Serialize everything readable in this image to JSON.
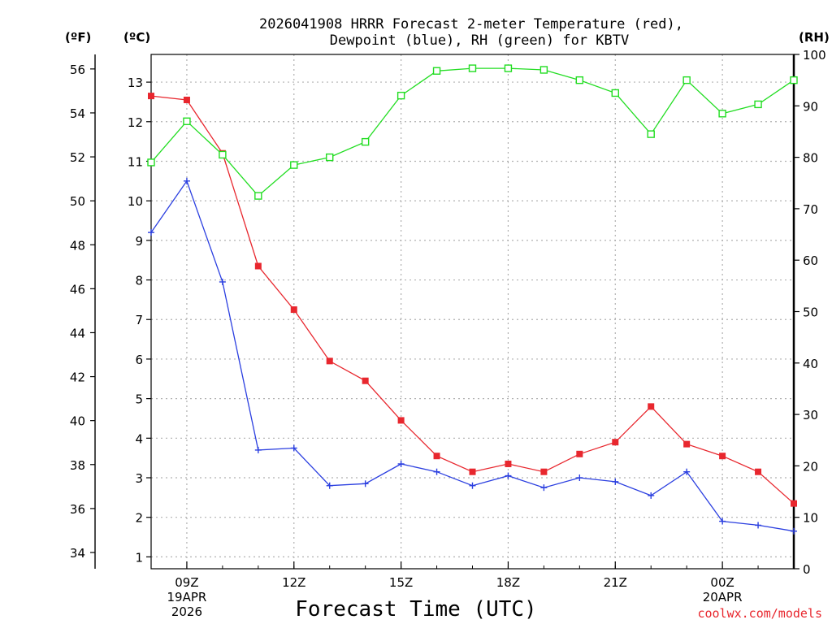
{
  "chart_data": {
    "type": "line",
    "title_lines": [
      "2026041908 HRRR Forecast 2-meter Temperature (red),",
      "Dewpoint (blue), RH (green) for KBTV"
    ],
    "xlabel": "Forecast Time (UTC)",
    "credit": "coolwx.com/models",
    "units": {
      "fahrenheit": "(ºF)",
      "celsius": "(ºC)",
      "rh": "(RH)"
    },
    "x_hours": [
      8,
      9,
      10,
      11,
      12,
      13,
      14,
      15,
      16,
      17,
      18,
      19,
      20,
      21,
      22,
      23,
      24,
      25,
      26
    ],
    "x_range": [
      8,
      26
    ],
    "x_ticks": [
      {
        "hour": 9,
        "lines": [
          "09Z",
          "19APR",
          "2026"
        ]
      },
      {
        "hour": 12,
        "lines": [
          "12Z"
        ]
      },
      {
        "hour": 15,
        "lines": [
          "15Z"
        ]
      },
      {
        "hour": 18,
        "lines": [
          "18Z"
        ]
      },
      {
        "hour": 21,
        "lines": [
          "21Z"
        ]
      },
      {
        "hour": 24,
        "lines": [
          "00Z",
          "20APR"
        ]
      }
    ],
    "celsius_axis": {
      "range": [
        0.7,
        13.7
      ],
      "ticks": [
        1,
        2,
        3,
        4,
        5,
        6,
        7,
        8,
        9,
        10,
        11,
        12,
        13
      ]
    },
    "fahrenheit_axis": {
      "ticks": [
        34,
        36,
        38,
        40,
        42,
        44,
        46,
        48,
        50,
        52,
        54,
        56
      ]
    },
    "rh_axis": {
      "range": [
        0,
        100
      ],
      "ticks": [
        0,
        10,
        20,
        30,
        40,
        50,
        60,
        70,
        80,
        90,
        100
      ]
    },
    "series": [
      {
        "name": "Temperature",
        "unit": "C",
        "color": "#e8272e",
        "marker": "filled-square",
        "values": [
          12.65,
          12.55,
          11.2,
          8.35,
          7.25,
          5.95,
          5.45,
          4.45,
          3.55,
          3.15,
          3.35,
          3.15,
          3.6,
          3.9,
          4.8,
          3.85,
          3.55,
          3.15,
          2.35
        ]
      },
      {
        "name": "Dewpoint",
        "unit": "C",
        "color": "#2b3fe0",
        "marker": "plus",
        "values": [
          9.2,
          10.5,
          7.95,
          3.7,
          3.75,
          2.8,
          2.85,
          3.35,
          3.15,
          2.8,
          3.05,
          2.75,
          3.0,
          2.9,
          2.55,
          3.15,
          1.9,
          1.8,
          1.65
        ]
      },
      {
        "name": "RH",
        "unit": "%",
        "color": "#22dd22",
        "marker": "open-square",
        "values": [
          79,
          87,
          80.5,
          72.5,
          78.5,
          80,
          83,
          92,
          96.8,
          97.3,
          97.3,
          97,
          95,
          92.5,
          84.5,
          95,
          88.5,
          90.3,
          95
        ]
      }
    ]
  }
}
